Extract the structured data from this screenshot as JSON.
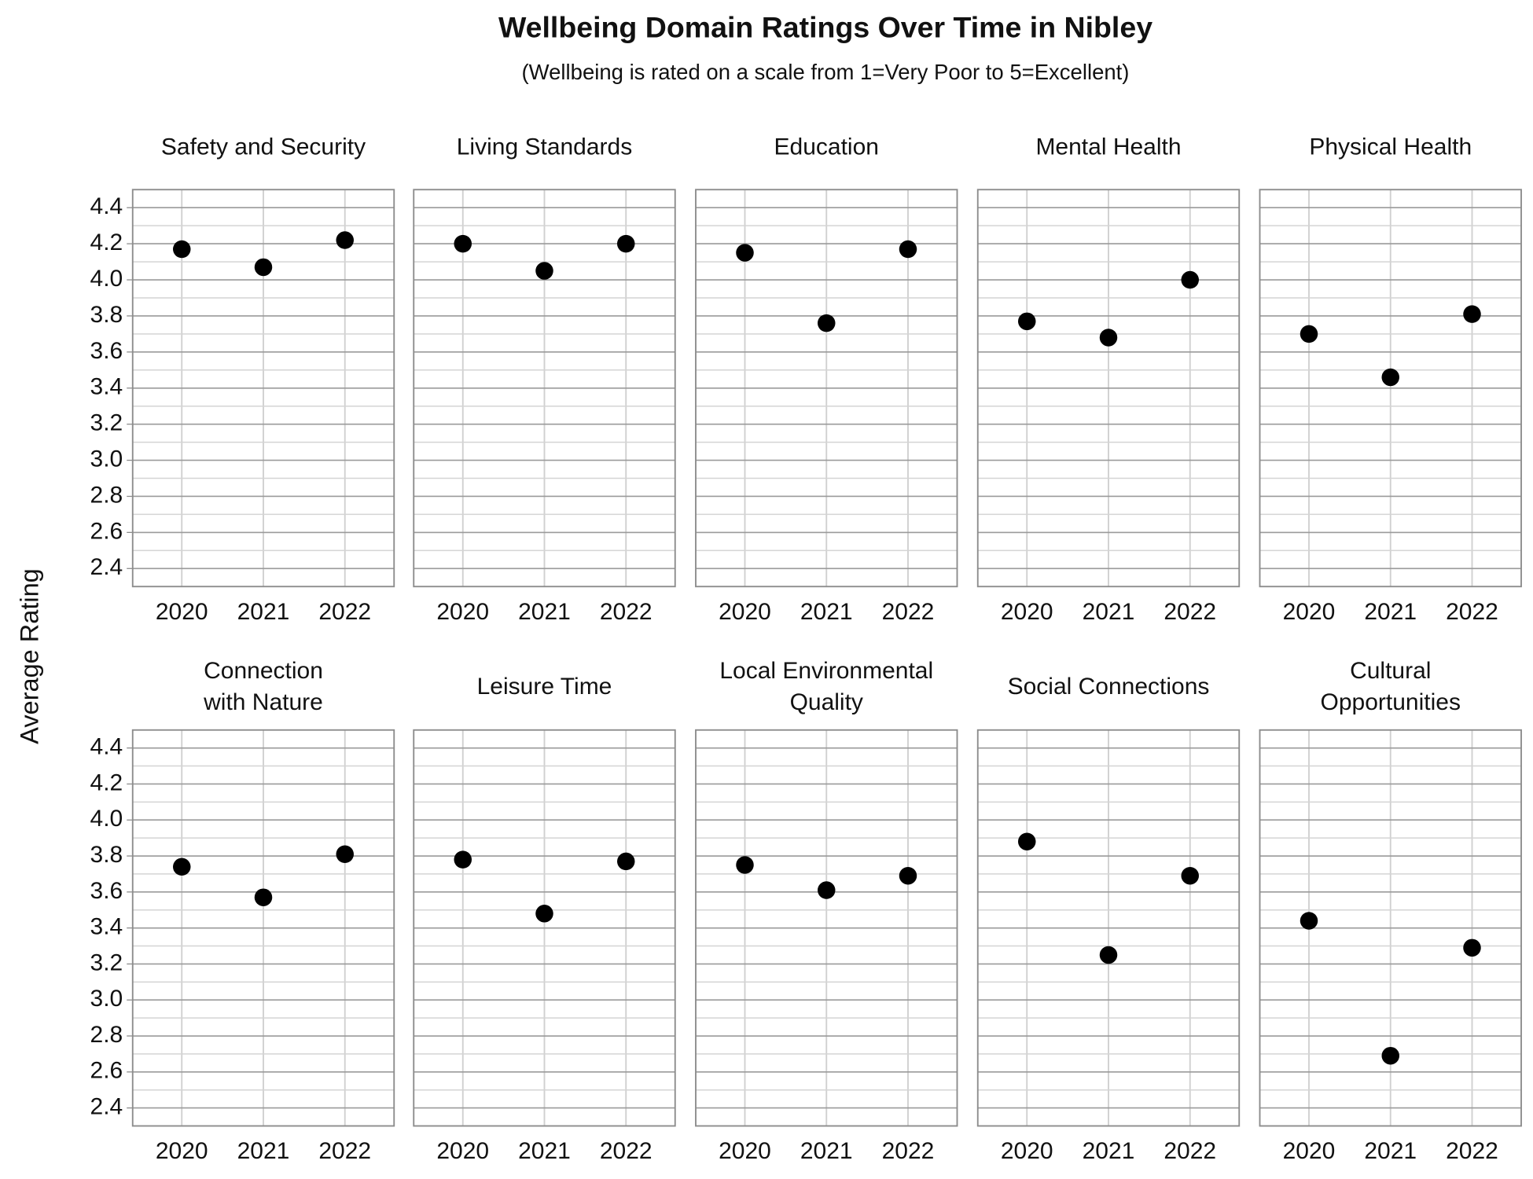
{
  "title": "Wellbeing Domain Ratings Over Time in Nibley",
  "subtitle": "(Wellbeing is rated on a scale from 1=Very Poor to 5=Excellent)",
  "y_label": "Average Rating",
  "chart_data": [
    {
      "type": "scatter",
      "title": [
        "Safety and Security"
      ],
      "categories": [
        "2020",
        "2021",
        "2022"
      ],
      "values": [
        4.17,
        4.07,
        4.22
      ],
      "color": "#000000",
      "ylim": [
        2.3,
        4.5
      ],
      "yticks": [
        2.4,
        2.6,
        2.8,
        {
          "value": 3,
          "label": "3.0"
        },
        3.2,
        3.4,
        3.6,
        3.8,
        {
          "value": 4,
          "label": "4.0"
        },
        4.2,
        4.4
      ],
      "minor_yticks": [
        2.5,
        2.7,
        2.9,
        3.1,
        3.3,
        3.5,
        3.7,
        3.9,
        4.1,
        4.3
      ],
      "grid": true
    },
    {
      "type": "scatter",
      "title": [
        "Living Standards"
      ],
      "categories": [
        "2020",
        "2021",
        "2022"
      ],
      "values": [
        4.2,
        4.05,
        4.2
      ],
      "color": "#000000",
      "ylim": [
        2.3,
        4.5
      ],
      "yticks": [
        2.4,
        2.6,
        2.8,
        {
          "value": 3,
          "label": "3.0"
        },
        3.2,
        3.4,
        3.6,
        3.8,
        {
          "value": 4,
          "label": "4.0"
        },
        4.2,
        4.4
      ],
      "minor_yticks": [
        2.5,
        2.7,
        2.9,
        3.1,
        3.3,
        3.5,
        3.7,
        3.9,
        4.1,
        4.3
      ],
      "grid": true
    },
    {
      "type": "scatter",
      "title": [
        "Education"
      ],
      "categories": [
        "2020",
        "2021",
        "2022"
      ],
      "values": [
        4.15,
        3.76,
        4.17
      ],
      "color": "#000000",
      "ylim": [
        2.3,
        4.5
      ],
      "yticks": [
        2.4,
        2.6,
        2.8,
        {
          "value": 3,
          "label": "3.0"
        },
        3.2,
        3.4,
        3.6,
        3.8,
        {
          "value": 4,
          "label": "4.0"
        },
        4.2,
        4.4
      ],
      "minor_yticks": [
        2.5,
        2.7,
        2.9,
        3.1,
        3.3,
        3.5,
        3.7,
        3.9,
        4.1,
        4.3
      ],
      "grid": true
    },
    {
      "type": "scatter",
      "title": [
        "Mental Health"
      ],
      "categories": [
        "2020",
        "2021",
        "2022"
      ],
      "values": [
        3.77,
        3.68,
        4.0
      ],
      "color": "#000000",
      "ylim": [
        2.3,
        4.5
      ],
      "yticks": [
        2.4,
        2.6,
        2.8,
        {
          "value": 3,
          "label": "3.0"
        },
        3.2,
        3.4,
        3.6,
        3.8,
        {
          "value": 4,
          "label": "4.0"
        },
        4.2,
        4.4
      ],
      "minor_yticks": [
        2.5,
        2.7,
        2.9,
        3.1,
        3.3,
        3.5,
        3.7,
        3.9,
        4.1,
        4.3
      ],
      "grid": true
    },
    {
      "type": "scatter",
      "title": [
        "Physical Health"
      ],
      "categories": [
        "2020",
        "2021",
        "2022"
      ],
      "values": [
        3.7,
        3.46,
        3.81
      ],
      "color": "#000000",
      "ylim": [
        2.3,
        4.5
      ],
      "yticks": [
        2.4,
        2.6,
        2.8,
        {
          "value": 3,
          "label": "3.0"
        },
        3.2,
        3.4,
        3.6,
        3.8,
        {
          "value": 4,
          "label": "4.0"
        },
        4.2,
        4.4
      ],
      "minor_yticks": [
        2.5,
        2.7,
        2.9,
        3.1,
        3.3,
        3.5,
        3.7,
        3.9,
        4.1,
        4.3
      ],
      "grid": true
    },
    {
      "type": "scatter",
      "title": [
        "Connection",
        "with Nature"
      ],
      "categories": [
        "2020",
        "2021",
        "2022"
      ],
      "values": [
        3.74,
        3.57,
        3.81
      ],
      "color": "#000000",
      "ylim": [
        2.3,
        4.5
      ],
      "yticks": [
        2.4,
        2.6,
        2.8,
        {
          "value": 3,
          "label": "3.0"
        },
        3.2,
        3.4,
        3.6,
        3.8,
        {
          "value": 4,
          "label": "4.0"
        },
        4.2,
        4.4
      ],
      "minor_yticks": [
        2.5,
        2.7,
        2.9,
        3.1,
        3.3,
        3.5,
        3.7,
        3.9,
        4.1,
        4.3
      ],
      "grid": true
    },
    {
      "type": "scatter",
      "title": [
        "Leisure Time"
      ],
      "categories": [
        "2020",
        "2021",
        "2022"
      ],
      "values": [
        3.78,
        3.48,
        3.77
      ],
      "color": "#000000",
      "ylim": [
        2.3,
        4.5
      ],
      "yticks": [
        2.4,
        2.6,
        2.8,
        {
          "value": 3,
          "label": "3.0"
        },
        3.2,
        3.4,
        3.6,
        3.8,
        {
          "value": 4,
          "label": "4.0"
        },
        4.2,
        4.4
      ],
      "minor_yticks": [
        2.5,
        2.7,
        2.9,
        3.1,
        3.3,
        3.5,
        3.7,
        3.9,
        4.1,
        4.3
      ],
      "grid": true
    },
    {
      "type": "scatter",
      "title": [
        "Local Environmental",
        "Quality"
      ],
      "categories": [
        "2020",
        "2021",
        "2022"
      ],
      "values": [
        3.75,
        3.61,
        3.69
      ],
      "color": "#000000",
      "ylim": [
        2.3,
        4.5
      ],
      "yticks": [
        2.4,
        2.6,
        2.8,
        {
          "value": 3,
          "label": "3.0"
        },
        3.2,
        3.4,
        3.6,
        3.8,
        {
          "value": 4,
          "label": "4.0"
        },
        4.2,
        4.4
      ],
      "minor_yticks": [
        2.5,
        2.7,
        2.9,
        3.1,
        3.3,
        3.5,
        3.7,
        3.9,
        4.1,
        4.3
      ],
      "grid": true
    },
    {
      "type": "scatter",
      "title": [
        "Social Connections"
      ],
      "categories": [
        "2020",
        "2021",
        "2022"
      ],
      "values": [
        3.88,
        3.25,
        3.69
      ],
      "color": "#000000",
      "ylim": [
        2.3,
        4.5
      ],
      "yticks": [
        2.4,
        2.6,
        2.8,
        {
          "value": 3,
          "label": "3.0"
        },
        3.2,
        3.4,
        3.6,
        3.8,
        {
          "value": 4,
          "label": "4.0"
        },
        4.2,
        4.4
      ],
      "minor_yticks": [
        2.5,
        2.7,
        2.9,
        3.1,
        3.3,
        3.5,
        3.7,
        3.9,
        4.1,
        4.3
      ],
      "grid": true
    },
    {
      "type": "scatter",
      "title": [
        "Cultural",
        "Opportunities"
      ],
      "categories": [
        "2020",
        "2021",
        "2022"
      ],
      "values": [
        3.44,
        2.69,
        3.29
      ],
      "color": "#000000",
      "ylim": [
        2.3,
        4.5
      ],
      "yticks": [
        2.4,
        2.6,
        2.8,
        {
          "value": 3,
          "label": "3.0"
        },
        3.2,
        3.4,
        3.6,
        3.8,
        {
          "value": 4,
          "label": "4.0"
        },
        4.2,
        4.4
      ],
      "minor_yticks": [
        2.5,
        2.7,
        2.9,
        3.1,
        3.3,
        3.5,
        3.7,
        3.9,
        4.1,
        4.3
      ],
      "grid": true
    }
  ]
}
